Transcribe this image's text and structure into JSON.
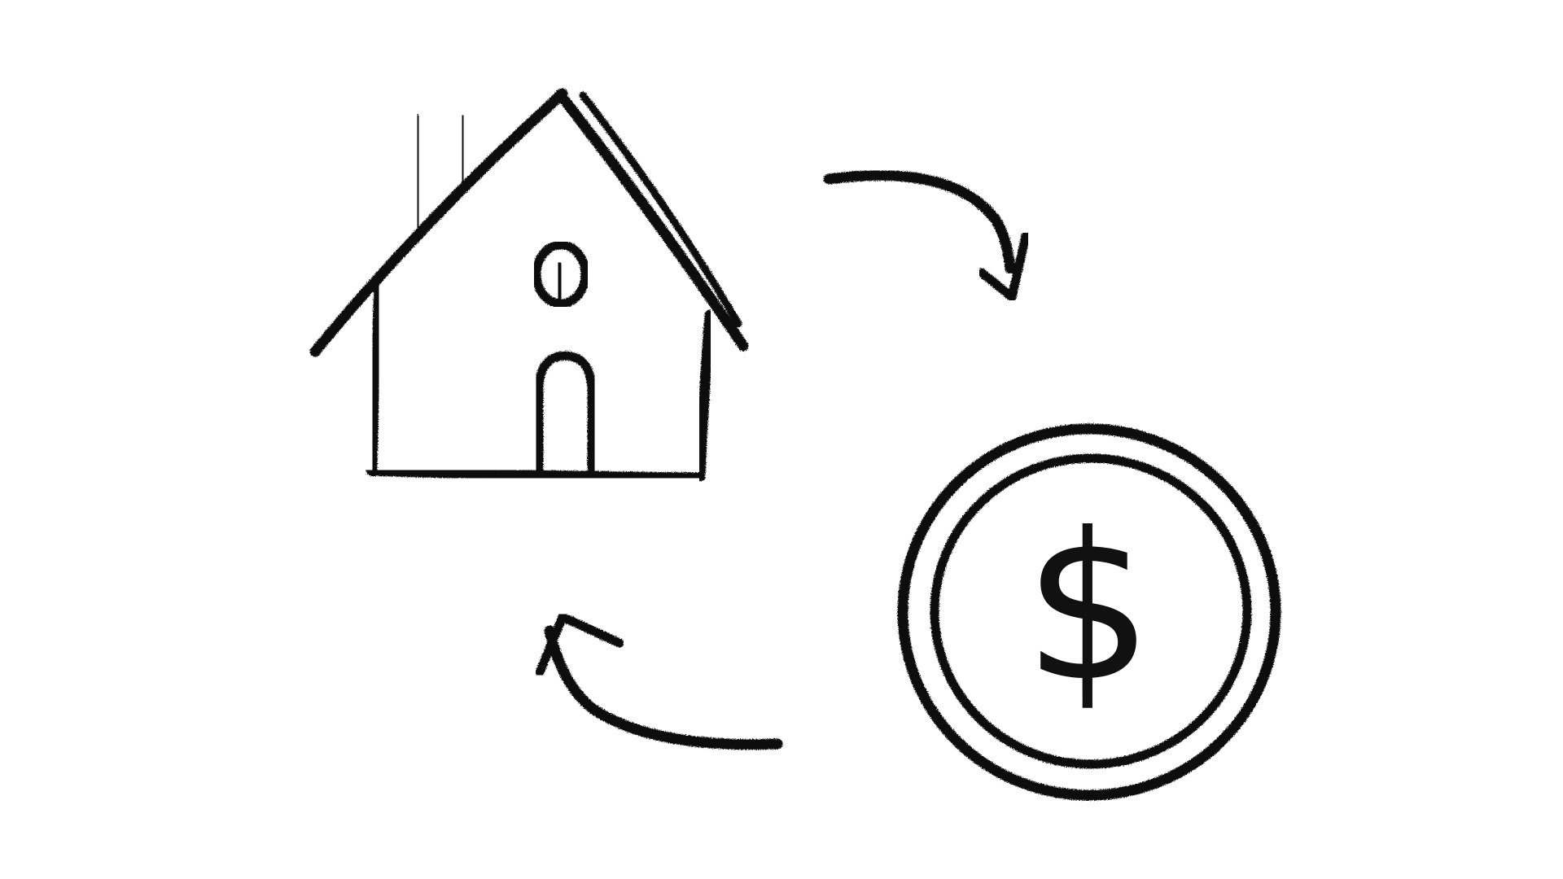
{
  "diagram": {
    "currency_symbol": "$",
    "colors": {
      "background": "#ffffff",
      "ink": "#111111"
    },
    "icons": [
      "house-icon",
      "chimney-icon",
      "round-window-icon",
      "arched-door-icon",
      "curved-arrow-right-down-icon",
      "coin-icon",
      "dollar-sign-icon",
      "curved-arrow-left-up-icon"
    ]
  }
}
